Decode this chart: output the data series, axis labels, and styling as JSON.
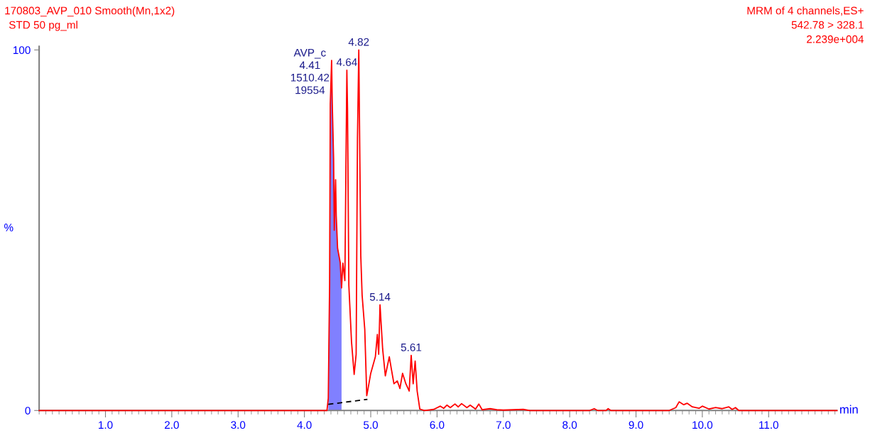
{
  "chart_data": {
    "type": "line",
    "title": "170803_AVP_010 Smooth(Mn,1x2)",
    "subtitle": "STD 50 pg_ml",
    "xlabel": "min",
    "ylabel": "%",
    "annotations": [
      "MRM of 4 channels,ES+",
      "542.78 > 328.1",
      "2.239e+004",
      {
        "text": "AVP_c\n4.41\n1510.42\n19554",
        "x": 4.41,
        "y": 97.1
      },
      {
        "text": "4.64",
        "x": 4.64,
        "y": 94.4
      },
      {
        "text": "4.82",
        "x": 4.82,
        "y": 100
      },
      {
        "text": "5.14",
        "x": 5.14,
        "y": 29.3
      },
      {
        "text": "5.61",
        "x": 5.61,
        "y": 15.3
      }
    ],
    "series": [
      {
        "color": "#ff0000",
        "x": [
          0,
          4.34,
          4.36,
          4.38,
          4.39,
          4.41,
          4.42,
          4.44,
          4.45,
          4.47,
          4.48,
          4.5,
          4.54,
          4.56,
          4.58,
          4.61,
          4.64,
          4.65,
          4.67,
          4.71,
          4.75,
          4.78,
          4.8,
          4.82,
          4.85,
          4.87,
          4.91,
          4.94,
          4.96,
          5.0,
          5.07,
          5.1,
          5.12,
          5.14,
          5.18,
          5.22,
          5.28,
          5.31,
          5.35,
          5.4,
          5.44,
          5.48,
          5.53,
          5.58,
          5.61,
          5.64,
          5.67,
          5.7,
          5.74,
          5.81,
          5.95,
          6.05,
          6.1,
          6.15,
          6.2,
          6.27,
          6.32,
          6.37,
          6.45,
          6.5,
          6.58,
          6.63,
          6.68,
          6.8,
          6.9,
          7.0,
          7.3,
          7.4,
          8.3,
          8.37,
          8.42,
          8.55,
          8.58,
          8.62,
          9.5,
          9.6,
          9.65,
          9.72,
          9.77,
          9.85,
          9.95,
          10.0,
          10.1,
          10.2,
          10.3,
          10.4,
          10.45,
          10.5,
          10.55,
          12.03
        ],
        "values": [
          0,
          0,
          3.4,
          35.4,
          85,
          97.1,
          85,
          70,
          50,
          64,
          54,
          45,
          41,
          34,
          40.9,
          36,
          94.4,
          83.6,
          34.7,
          19.1,
          10,
          15.6,
          75.4,
          100,
          42.9,
          32,
          22.5,
          4.1,
          6.1,
          10.3,
          14.9,
          21.1,
          15.6,
          29.3,
          17,
          9.6,
          14.9,
          11.6,
          7.4,
          8.2,
          6.1,
          10.3,
          7.4,
          5.4,
          15.3,
          7.4,
          13.7,
          5.4,
          0.4,
          0,
          0.3,
          1.2,
          0.6,
          1.5,
          0.8,
          1.8,
          1,
          1.9,
          0.8,
          1.5,
          0.4,
          1.8,
          0.2,
          0.5,
          0.2,
          0.1,
          0.3,
          0,
          0,
          0.5,
          0,
          0,
          0.5,
          0,
          0,
          0.8,
          2.4,
          1.6,
          2,
          1,
          0.6,
          1.2,
          0.4,
          0.8,
          0.5,
          1,
          0.3,
          0.8,
          0,
          0
        ]
      },
      {
        "type": "area",
        "color": "#8080ff",
        "x": [
          4.36,
          4.38,
          4.39,
          4.41,
          4.42,
          4.44,
          4.45,
          4.47,
          4.48,
          4.5,
          4.54,
          4.56
        ],
        "values": [
          3.4,
          35.4,
          85,
          97.1,
          85,
          70,
          50,
          64,
          54,
          45,
          41,
          34
        ]
      },
      {
        "type": "line",
        "color": "#000000",
        "line_style": "dashed",
        "x": [
          4.36,
          4.95
        ],
        "values": [
          1.7,
          3.1
        ]
      }
    ],
    "xlim": [
      0,
      12.03
    ],
    "ylim": [
      0,
      101
    ],
    "xticks": [
      {
        "value": 1,
        "label": "1.0"
      },
      {
        "value": 2,
        "label": "2.0"
      },
      {
        "value": 3,
        "label": "3.0"
      },
      {
        "value": 4,
        "label": "4.0"
      },
      {
        "value": 5,
        "label": "5.0"
      },
      {
        "value": 6,
        "label": "6.0"
      },
      {
        "value": 7,
        "label": "7.0"
      },
      {
        "value": 8,
        "label": "8.0"
      },
      {
        "value": 9,
        "label": "9.0"
      },
      {
        "value": 10,
        "label": "10.0"
      },
      {
        "value": 11,
        "label": "11.0"
      }
    ],
    "yticks": [
      0,
      100
    ],
    "grid": false,
    "legend": false
  }
}
